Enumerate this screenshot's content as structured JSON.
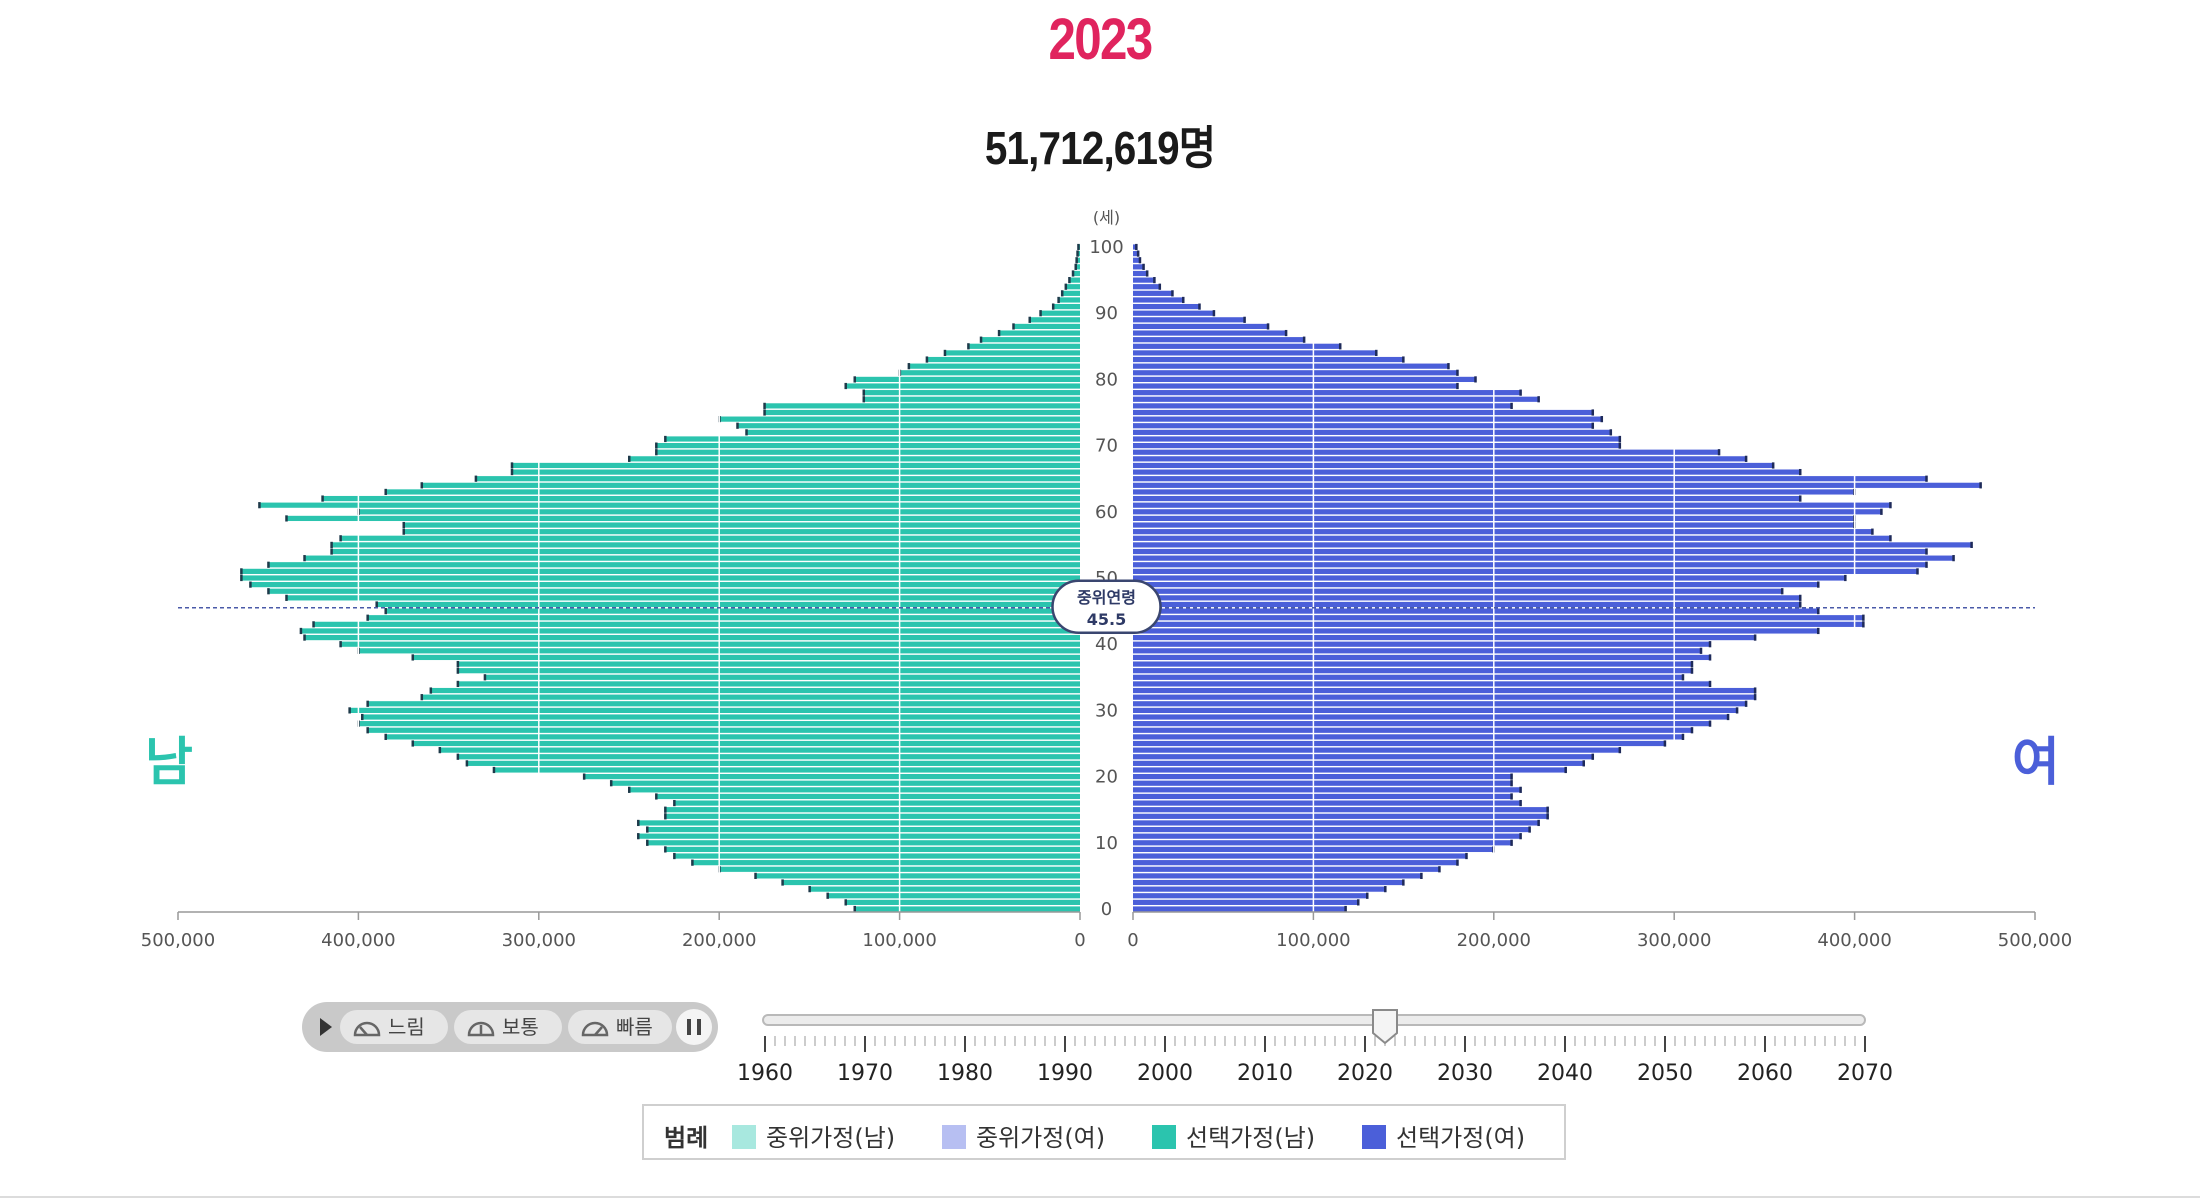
{
  "header": {
    "year": "2023",
    "total": "51,712,619명"
  },
  "side_labels": {
    "male": "남",
    "female": "여"
  },
  "median_marker": {
    "label": "중위연령",
    "value": "45.5"
  },
  "colors": {
    "male": "#2bc4ae",
    "female": "#4b5fd9",
    "year": "#e0245e"
  },
  "controls": {
    "play_icon": "play-icon",
    "speeds": [
      {
        "label": "느림",
        "icon": "speedometer-slow-icon"
      },
      {
        "label": "보통",
        "icon": "speedometer-mid-icon"
      },
      {
        "label": "빠름",
        "icon": "speedometer-fast-icon"
      }
    ],
    "pause_icon": "pause-icon"
  },
  "timeline": {
    "labels": [
      "1960",
      "1970",
      "1980",
      "1990",
      "2000",
      "2010",
      "2020",
      "2030",
      "2040",
      "2050",
      "2060",
      "2070"
    ],
    "min": 1960,
    "max": 2070,
    "selected": 2023
  },
  "legend": {
    "title": "범례",
    "items": [
      {
        "label": "중위가정(남)",
        "color": "#a8e8df"
      },
      {
        "label": "중위가정(여)",
        "color": "#b7bff2"
      },
      {
        "label": "선택가정(남)",
        "color": "#2bc4ae"
      },
      {
        "label": "선택가정(여)",
        "color": "#4b5fd9"
      }
    ]
  },
  "chart_data": {
    "type": "bar",
    "subtype": "population-pyramid",
    "title": "2023",
    "age_unit_label": "(세)",
    "y_ticks": [
      "0",
      "10",
      "20",
      "30",
      "40",
      "50",
      "60",
      "70",
      "80",
      "90",
      "100"
    ],
    "x_ticks_male": [
      "500,000",
      "400,000",
      "300,000",
      "200,000",
      "100,000",
      "0"
    ],
    "x_ticks_female": [
      "0",
      "100,000",
      "200,000",
      "300,000",
      "400,000",
      "500,000"
    ],
    "xlim": [
      0,
      500000
    ],
    "ages": [
      0,
      1,
      2,
      3,
      4,
      5,
      6,
      7,
      8,
      9,
      10,
      11,
      12,
      13,
      14,
      15,
      16,
      17,
      18,
      19,
      20,
      21,
      22,
      23,
      24,
      25,
      26,
      27,
      28,
      29,
      30,
      31,
      32,
      33,
      34,
      35,
      36,
      37,
      38,
      39,
      40,
      41,
      42,
      43,
      44,
      45,
      46,
      47,
      48,
      49,
      50,
      51,
      52,
      53,
      54,
      55,
      56,
      57,
      58,
      59,
      60,
      61,
      62,
      63,
      64,
      65,
      66,
      67,
      68,
      69,
      70,
      71,
      72,
      73,
      74,
      75,
      76,
      77,
      78,
      79,
      80,
      81,
      82,
      83,
      84,
      85,
      86,
      87,
      88,
      89,
      90,
      91,
      92,
      93,
      94,
      95,
      96,
      97,
      98,
      99,
      100
    ],
    "series": [
      {
        "name": "선택가정(남)",
        "values": [
          125000,
          130000,
          140000,
          150000,
          165000,
          180000,
          200000,
          215000,
          225000,
          230000,
          240000,
          245000,
          240000,
          245000,
          230000,
          230000,
          225000,
          235000,
          250000,
          260000,
          275000,
          325000,
          340000,
          345000,
          355000,
          370000,
          385000,
          395000,
          400000,
          398000,
          405000,
          395000,
          365000,
          360000,
          345000,
          330000,
          345000,
          345000,
          370000,
          400000,
          410000,
          430000,
          432000,
          425000,
          395000,
          385000,
          390000,
          440000,
          450000,
          460000,
          465000,
          465000,
          450000,
          430000,
          415000,
          415000,
          410000,
          375000,
          375000,
          440000,
          400000,
          455000,
          420000,
          385000,
          365000,
          335000,
          315000,
          315000,
          250000,
          235000,
          235000,
          230000,
          185000,
          190000,
          200000,
          175000,
          175000,
          120000,
          120000,
          130000,
          125000,
          100000,
          95000,
          85000,
          75000,
          62000,
          55000,
          45000,
          37000,
          28000,
          22000,
          15000,
          12000,
          10000,
          8000,
          6000,
          4000,
          2500,
          2000,
          1500,
          1000
        ]
      },
      {
        "name": "선택가정(여)",
        "values": [
          118000,
          125000,
          130000,
          140000,
          150000,
          160000,
          170000,
          180000,
          185000,
          200000,
          210000,
          215000,
          220000,
          225000,
          230000,
          230000,
          215000,
          210000,
          215000,
          210000,
          210000,
          240000,
          250000,
          255000,
          270000,
          295000,
          305000,
          310000,
          320000,
          330000,
          335000,
          340000,
          345000,
          345000,
          320000,
          305000,
          310000,
          310000,
          320000,
          315000,
          320000,
          345000,
          380000,
          405000,
          405000,
          380000,
          370000,
          370000,
          360000,
          380000,
          395000,
          435000,
          440000,
          455000,
          440000,
          465000,
          420000,
          410000,
          400000,
          400000,
          415000,
          420000,
          370000,
          400000,
          470000,
          440000,
          370000,
          355000,
          340000,
          325000,
          270000,
          270000,
          265000,
          255000,
          260000,
          255000,
          210000,
          225000,
          215000,
          180000,
          190000,
          180000,
          175000,
          150000,
          135000,
          115000,
          95000,
          85000,
          75000,
          62000,
          45000,
          37000,
          28000,
          22000,
          15000,
          12000,
          8000,
          6000,
          4000,
          3000,
          2000
        ]
      }
    ],
    "median_age": 45.5
  }
}
